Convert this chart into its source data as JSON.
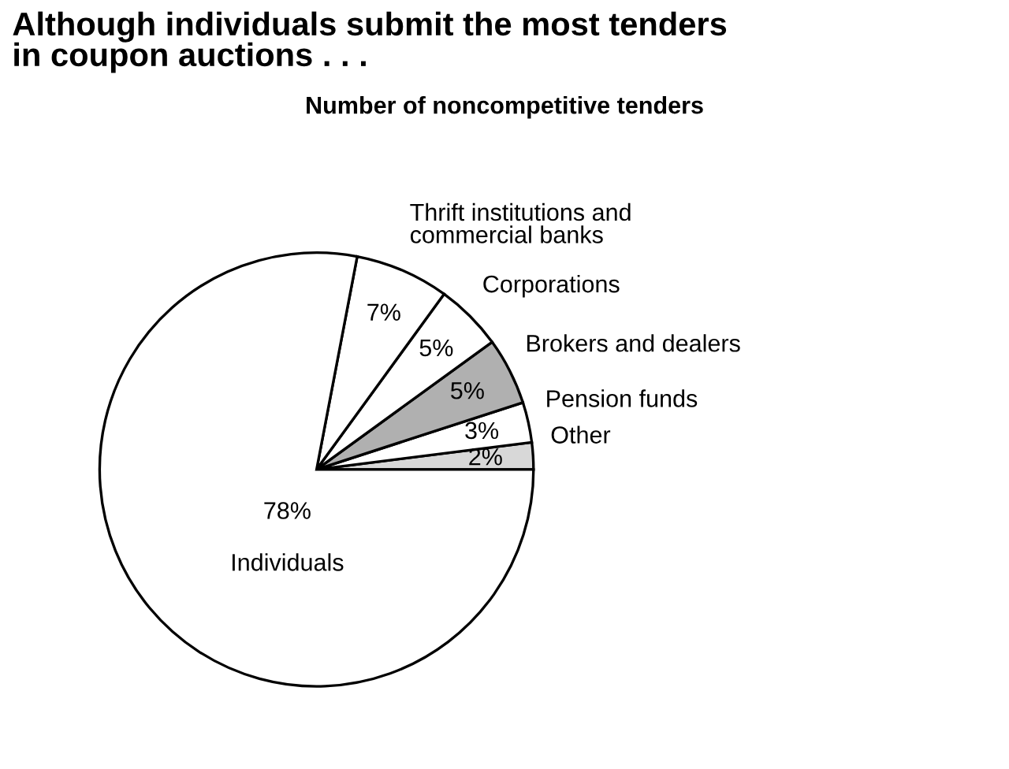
{
  "chart_data": {
    "type": "pie",
    "title": "Although individuals submit the most tenders\nin coupon auctions . . .",
    "subtitle": "Number of noncompetitive tenders",
    "categories": [
      "Other",
      "Pension funds",
      "Brokers and dealers",
      "Corporations",
      "Thrift institutions and\ncommercial banks",
      "Individuals"
    ],
    "values": [
      2,
      3,
      5,
      5,
      7,
      78
    ],
    "colors": [
      "#d8d8d8",
      "#ffffff",
      "#b0b0b0",
      "#ffffff",
      "#ffffff",
      "#ffffff"
    ],
    "value_labels": [
      "2%",
      "3%",
      "5%",
      "5%",
      "7%",
      "78%"
    ]
  }
}
